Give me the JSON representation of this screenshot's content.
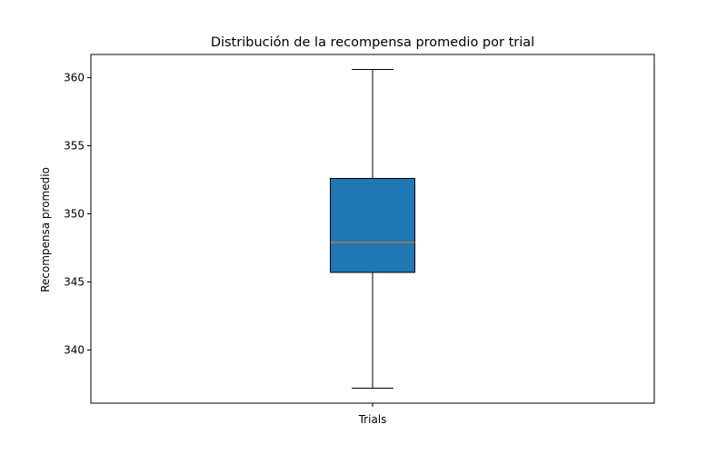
{
  "chart_data": {
    "type": "box",
    "title": "Distribución de la recompensa promedio por trial",
    "xlabel": "",
    "ylabel": "Recompensa promedio",
    "categories": [
      "Trials"
    ],
    "boxes": [
      {
        "category": "Trials",
        "whisker_low": 337.2,
        "q1": 345.7,
        "median": 347.9,
        "q3": 352.6,
        "whisker_high": 360.6
      }
    ],
    "ylim": [
      336.1,
      361.7
    ],
    "yticks": [
      340,
      345,
      350,
      355,
      360
    ],
    "ytick_labels": [
      "340",
      "345",
      "350",
      "355",
      "360"
    ],
    "grid": false,
    "colors": {
      "box_fill": "#1f77b4",
      "median": "#ff7f0e",
      "edge": "#000000"
    }
  }
}
